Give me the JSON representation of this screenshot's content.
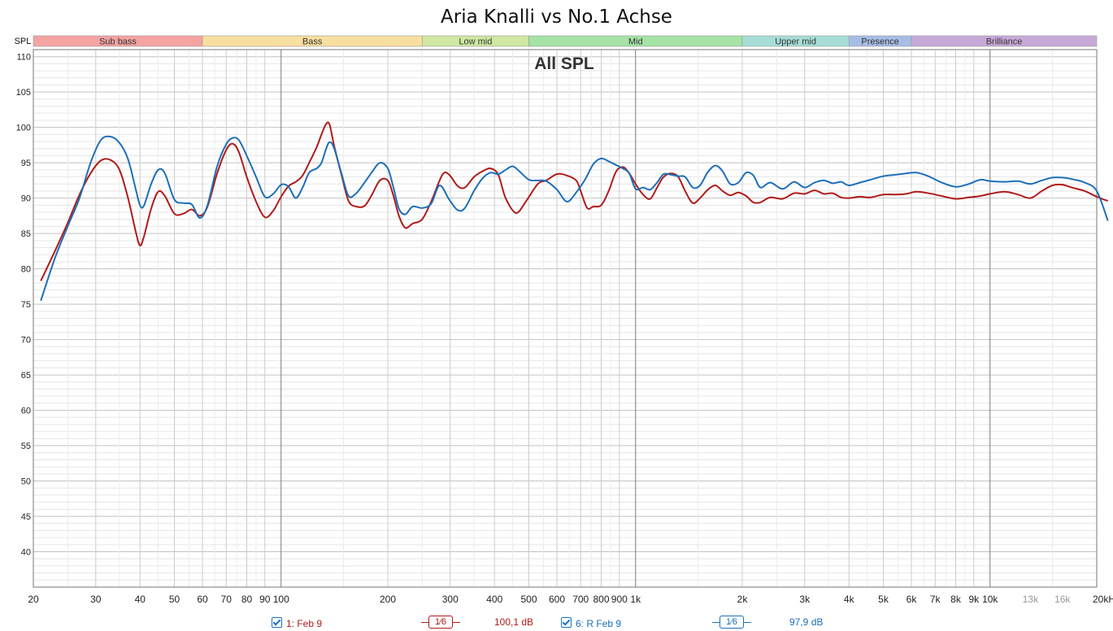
{
  "title": "Aria Knalli vs No.1 Achse",
  "chart_data": {
    "type": "line",
    "title": "Aria Knalli vs No.1 Achse",
    "subtitle": "All SPL",
    "ylabel": "SPL",
    "x_unit": "kHz",
    "x_scale": "log",
    "xlim": [
      20,
      20000
    ],
    "ylim": [
      35,
      111
    ],
    "grid": true,
    "x_major_ticks": [
      20,
      100,
      1000,
      10000
    ],
    "x_ticks": [
      {
        "value": 20,
        "label": "20"
      },
      {
        "value": 30,
        "label": "30"
      },
      {
        "value": 40,
        "label": "40"
      },
      {
        "value": 50,
        "label": "50"
      },
      {
        "value": 60,
        "label": "60"
      },
      {
        "value": 70,
        "label": "70"
      },
      {
        "value": 80,
        "label": "80"
      },
      {
        "value": 90,
        "label": "90"
      },
      {
        "value": 100,
        "label": "100"
      },
      {
        "value": 200,
        "label": "200"
      },
      {
        "value": 300,
        "label": "300"
      },
      {
        "value": 400,
        "label": "400"
      },
      {
        "value": 500,
        "label": "500"
      },
      {
        "value": 600,
        "label": "600"
      },
      {
        "value": 700,
        "label": "700"
      },
      {
        "value": 800,
        "label": "800"
      },
      {
        "value": 900,
        "label": "900"
      },
      {
        "value": 1000,
        "label": "1k"
      },
      {
        "value": 2000,
        "label": "2k"
      },
      {
        "value": 3000,
        "label": "3k"
      },
      {
        "value": 4000,
        "label": "4k"
      },
      {
        "value": 5000,
        "label": "5k"
      },
      {
        "value": 6000,
        "label": "6k"
      },
      {
        "value": 7000,
        "label": "7k"
      },
      {
        "value": 8000,
        "label": "8k"
      },
      {
        "value": 9000,
        "label": "9k"
      },
      {
        "value": 10000,
        "label": "10k"
      },
      {
        "value": 13000,
        "label": "13k",
        "muted": true
      },
      {
        "value": 16000,
        "label": "16k",
        "muted": true
      },
      {
        "value": 20000,
        "label": "20kHz"
      }
    ],
    "y_ticks": [
      110,
      105,
      100,
      95,
      90,
      85,
      80,
      75,
      70,
      65,
      60,
      55,
      50,
      45,
      40
    ],
    "bands": [
      {
        "label": "Sub bass",
        "from": 20,
        "to": 60,
        "color": "#f5a3a3"
      },
      {
        "label": "Bass",
        "from": 60,
        "to": 250,
        "color": "#f9dfa0"
      },
      {
        "label": "Low mid",
        "from": 250,
        "to": 500,
        "color": "#cfe8a2"
      },
      {
        "label": "Mid",
        "from": 500,
        "to": 2000,
        "color": "#a6e3a6"
      },
      {
        "label": "Upper mid",
        "from": 2000,
        "to": 4000,
        "color": "#a6ded6"
      },
      {
        "label": "Presence",
        "from": 4000,
        "to": 6000,
        "color": "#a8bde6"
      },
      {
        "label": "Brilliance",
        "from": 6000,
        "to": 20000,
        "color": "#c7a9d8"
      }
    ],
    "series": [
      {
        "name": "1: Feb 9",
        "color": "#b01b1b",
        "points": [
          [
            21,
            78.3
          ],
          [
            23,
            82.5
          ],
          [
            25,
            86.5
          ],
          [
            27,
            90.5
          ],
          [
            29,
            93.5
          ],
          [
            31,
            95.3
          ],
          [
            33,
            95.4
          ],
          [
            35,
            94
          ],
          [
            37,
            90
          ],
          [
            39,
            85
          ],
          [
            40,
            83.3
          ],
          [
            41,
            84.5
          ],
          [
            43,
            88.5
          ],
          [
            45,
            90.9
          ],
          [
            47,
            90.3
          ],
          [
            50,
            87.8
          ],
          [
            53,
            87.8
          ],
          [
            56,
            88.4
          ],
          [
            59,
            87.5
          ],
          [
            62,
            88.8
          ],
          [
            66,
            93.5
          ],
          [
            70,
            96.8
          ],
          [
            73,
            97.7
          ],
          [
            76,
            96.5
          ],
          [
            80,
            93
          ],
          [
            85,
            89.5
          ],
          [
            90,
            87.3
          ],
          [
            95,
            88.2
          ],
          [
            100,
            90.2
          ],
          [
            105,
            91.7
          ],
          [
            110,
            92.3
          ],
          [
            115,
            93.2
          ],
          [
            120,
            95
          ],
          [
            126,
            97.2
          ],
          [
            130,
            99
          ],
          [
            134,
            100.5
          ],
          [
            137,
            100.4
          ],
          [
            141,
            97.5
          ],
          [
            148,
            93.3
          ],
          [
            155,
            89.6
          ],
          [
            163,
            88.8
          ],
          [
            172,
            88.9
          ],
          [
            180,
            90.4
          ],
          [
            190,
            92.5
          ],
          [
            200,
            92.5
          ],
          [
            207,
            90.5
          ],
          [
            215,
            87.5
          ],
          [
            224,
            85.8
          ],
          [
            235,
            86.4
          ],
          [
            250,
            87
          ],
          [
            265,
            89.5
          ],
          [
            285,
            93.3
          ],
          [
            298,
            93.3
          ],
          [
            315,
            91.7
          ],
          [
            330,
            91.5
          ],
          [
            350,
            93
          ],
          [
            370,
            93.8
          ],
          [
            390,
            94.2
          ],
          [
            410,
            93.3
          ],
          [
            430,
            90
          ],
          [
            460,
            87.9
          ],
          [
            490,
            89.5
          ],
          [
            530,
            92
          ],
          [
            560,
            92.5
          ],
          [
            600,
            93.4
          ],
          [
            640,
            93.2
          ],
          [
            680,
            92.5
          ],
          [
            700,
            91
          ],
          [
            730,
            88.6
          ],
          [
            760,
            88.8
          ],
          [
            800,
            89
          ],
          [
            840,
            91
          ],
          [
            880,
            93.7
          ],
          [
            920,
            94.4
          ],
          [
            960,
            93.5
          ],
          [
            1000,
            92
          ],
          [
            1050,
            90.5
          ],
          [
            1100,
            89.9
          ],
          [
            1150,
            91.5
          ],
          [
            1200,
            93
          ],
          [
            1260,
            93.5
          ],
          [
            1320,
            93
          ],
          [
            1380,
            91
          ],
          [
            1450,
            89.3
          ],
          [
            1520,
            90
          ],
          [
            1600,
            91.2
          ],
          [
            1680,
            91.8
          ],
          [
            1760,
            91
          ],
          [
            1850,
            90.4
          ],
          [
            1950,
            90.8
          ],
          [
            2050,
            90.3
          ],
          [
            2150,
            89.4
          ],
          [
            2250,
            89.4
          ],
          [
            2400,
            90.1
          ],
          [
            2600,
            89.9
          ],
          [
            2800,
            90.7
          ],
          [
            3000,
            90.6
          ],
          [
            3200,
            91.1
          ],
          [
            3400,
            90.6
          ],
          [
            3600,
            90.7
          ],
          [
            3800,
            90.1
          ],
          [
            4000,
            90.0
          ],
          [
            4300,
            90.2
          ],
          [
            4600,
            90.1
          ],
          [
            5000,
            90.5
          ],
          [
            5400,
            90.5
          ],
          [
            5800,
            90.6
          ],
          [
            6200,
            90.9
          ],
          [
            6700,
            90.7
          ],
          [
            7300,
            90.3
          ],
          [
            8000,
            89.9
          ],
          [
            8700,
            90.1
          ],
          [
            9400,
            90.3
          ],
          [
            10000,
            90.6
          ],
          [
            11000,
            90.9
          ],
          [
            12000,
            90.5
          ],
          [
            13000,
            90.0
          ],
          [
            14000,
            91.0
          ],
          [
            15000,
            91.8
          ],
          [
            16000,
            91.9
          ],
          [
            17000,
            91.5
          ],
          [
            18500,
            91.0
          ],
          [
            20000,
            90.2
          ],
          [
            21500,
            89.6
          ]
        ]
      },
      {
        "name": "6: R Feb 9",
        "color": "#1d6fb8",
        "points": [
          [
            21,
            75.5
          ],
          [
            23,
            81.5
          ],
          [
            25,
            86
          ],
          [
            27,
            90
          ],
          [
            29,
            95
          ],
          [
            31,
            98.2
          ],
          [
            33,
            98.7
          ],
          [
            35,
            97.8
          ],
          [
            37,
            95.5
          ],
          [
            39,
            91
          ],
          [
            40,
            89
          ],
          [
            41,
            88.9
          ],
          [
            43,
            92
          ],
          [
            45,
            94
          ],
          [
            47,
            93.5
          ],
          [
            50,
            89.8
          ],
          [
            53,
            89.3
          ],
          [
            56,
            89.1
          ],
          [
            59,
            87.2
          ],
          [
            62,
            89
          ],
          [
            66,
            94.5
          ],
          [
            70,
            97.6
          ],
          [
            73,
            98.5
          ],
          [
            76,
            98.2
          ],
          [
            80,
            96
          ],
          [
            85,
            93
          ],
          [
            90,
            90.2
          ],
          [
            95,
            90.6
          ],
          [
            100,
            91.9
          ],
          [
            105,
            91.6
          ],
          [
            110,
            90
          ],
          [
            115,
            91.5
          ],
          [
            120,
            93.6
          ],
          [
            126,
            94.2
          ],
          [
            130,
            95
          ],
          [
            134,
            97
          ],
          [
            137,
            97.9
          ],
          [
            141,
            97.1
          ],
          [
            148,
            93.5
          ],
          [
            155,
            90.3
          ],
          [
            163,
            90.7
          ],
          [
            172,
            92.2
          ],
          [
            180,
            93.6
          ],
          [
            190,
            95
          ],
          [
            200,
            94.2
          ],
          [
            207,
            91.7
          ],
          [
            215,
            88.5
          ],
          [
            224,
            87.7
          ],
          [
            235,
            88.8
          ],
          [
            250,
            88.6
          ],
          [
            265,
            89.2
          ],
          [
            280,
            91.8
          ],
          [
            298,
            89.8
          ],
          [
            315,
            88.3
          ],
          [
            330,
            88.6
          ],
          [
            350,
            91
          ],
          [
            370,
            92.8
          ],
          [
            390,
            93.6
          ],
          [
            410,
            93.4
          ],
          [
            430,
            94
          ],
          [
            450,
            94.5
          ],
          [
            470,
            93.8
          ],
          [
            500,
            92.6
          ],
          [
            530,
            92.5
          ],
          [
            560,
            92.4
          ],
          [
            600,
            91.2
          ],
          [
            640,
            89.5
          ],
          [
            680,
            90.8
          ],
          [
            720,
            92.6
          ],
          [
            760,
            94.8
          ],
          [
            800,
            95.6
          ],
          [
            840,
            95.2
          ],
          [
            880,
            94.7
          ],
          [
            920,
            94.2
          ],
          [
            960,
            93.5
          ],
          [
            1000,
            91.3
          ],
          [
            1050,
            91.5
          ],
          [
            1100,
            91.2
          ],
          [
            1150,
            92.2
          ],
          [
            1200,
            93.4
          ],
          [
            1260,
            93.3
          ],
          [
            1320,
            93.1
          ],
          [
            1380,
            93
          ],
          [
            1450,
            91.5
          ],
          [
            1520,
            91.8
          ],
          [
            1600,
            93.7
          ],
          [
            1680,
            94.6
          ],
          [
            1760,
            93.8
          ],
          [
            1850,
            92
          ],
          [
            1950,
            92.2
          ],
          [
            2050,
            93.6
          ],
          [
            2150,
            93.2
          ],
          [
            2250,
            91.5
          ],
          [
            2400,
            92.2
          ],
          [
            2600,
            91.3
          ],
          [
            2800,
            92.3
          ],
          [
            3000,
            91.5
          ],
          [
            3200,
            92.2
          ],
          [
            3400,
            92.5
          ],
          [
            3600,
            92.1
          ],
          [
            3800,
            92.3
          ],
          [
            4000,
            91.8
          ],
          [
            4300,
            92.2
          ],
          [
            4600,
            92.6
          ],
          [
            5000,
            93.1
          ],
          [
            5400,
            93.3
          ],
          [
            5800,
            93.5
          ],
          [
            6200,
            93.6
          ],
          [
            6700,
            93.1
          ],
          [
            7300,
            92.2
          ],
          [
            8000,
            91.6
          ],
          [
            8700,
            92.0
          ],
          [
            9400,
            92.6
          ],
          [
            10000,
            92.4
          ],
          [
            11000,
            92.3
          ],
          [
            12000,
            92.4
          ],
          [
            13000,
            92.0
          ],
          [
            14000,
            92.5
          ],
          [
            15000,
            92.9
          ],
          [
            16000,
            92.9
          ],
          [
            17000,
            92.7
          ],
          [
            18500,
            92.2
          ],
          [
            20000,
            91.0
          ],
          [
            21500,
            86.8
          ]
        ]
      }
    ]
  },
  "legend": {
    "items": [
      {
        "name": "1: Feb 9",
        "smoothing": "1⁄6",
        "level": "100,1 dB",
        "color": "#b01b1b"
      },
      {
        "name": "6: R Feb 9",
        "smoothing": "1⁄6",
        "level": "97,9 dB",
        "color": "#1d6fb8"
      }
    ]
  }
}
